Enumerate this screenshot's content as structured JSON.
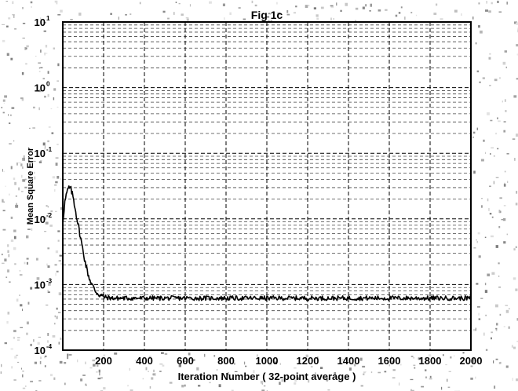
{
  "chart_data": {
    "type": "line",
    "title": "Fig 1c",
    "xlabel": "Iteration Number ( 32-point average )",
    "ylabel": "Mean Square Error",
    "x_ticks": [
      200,
      400,
      600,
      800,
      1000,
      1200,
      1400,
      1600,
      1800,
      2000
    ],
    "x_tick_labels": [
      "200",
      "400",
      "600",
      "800",
      "1000",
      "1200",
      "1400",
      "1600",
      "1800",
      "2000"
    ],
    "y_scale": "log",
    "y_ticks": [
      0.0001,
      0.001,
      0.01,
      0.1,
      1,
      10
    ],
    "y_tick_labels": [
      "10",
      "10",
      "10",
      "10",
      "10",
      "10"
    ],
    "y_tick_exponents": [
      "-4",
      "-3",
      "-2",
      "-1",
      "0",
      "1"
    ],
    "xlim": [
      0,
      2000
    ],
    "ylim": [
      0.0001,
      10
    ],
    "grid": true,
    "series": [
      {
        "color": "#000000",
        "x": [
          0,
          10,
          20,
          30,
          40,
          50,
          60,
          70,
          80,
          90,
          100,
          110,
          120,
          130,
          140,
          150,
          160,
          170,
          180,
          190,
          200,
          210,
          220,
          230,
          240,
          250,
          260,
          270,
          280,
          300,
          350,
          400,
          500,
          600,
          700,
          800,
          900,
          1000,
          1100,
          1200,
          1300,
          1400,
          1500,
          1600,
          1700,
          1800,
          1900,
          2000
        ],
        "y": [
          0.009,
          0.018,
          0.025,
          0.03,
          0.028,
          0.022,
          0.015,
          0.01,
          0.0068,
          0.0046,
          0.0032,
          0.0022,
          0.0016,
          0.00125,
          0.00105,
          0.0009,
          0.0008,
          0.00074,
          0.0007,
          0.00067,
          0.00065,
          0.00064,
          0.00063,
          0.00063,
          0.00062,
          0.00062,
          0.00062,
          0.00062,
          0.00062,
          0.00062,
          0.00062,
          0.00062,
          0.00062,
          0.00062,
          0.00062,
          0.00062,
          0.00062,
          0.00062,
          0.00062,
          0.00062,
          0.00062,
          0.00062,
          0.00062,
          0.00062,
          0.00062,
          0.00062,
          0.00062,
          0.00062
        ]
      }
    ]
  }
}
